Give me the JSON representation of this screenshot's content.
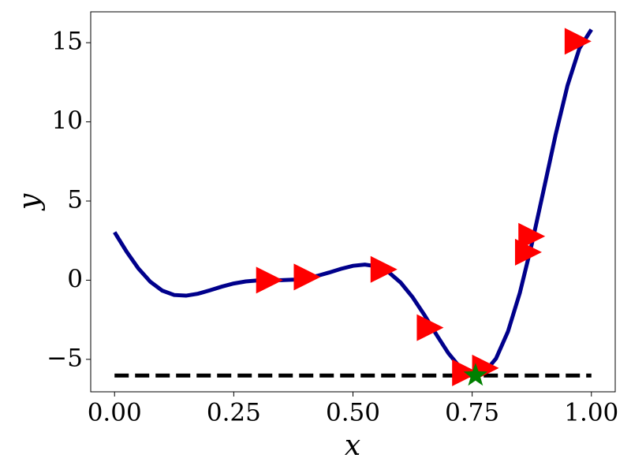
{
  "chart_data": {
    "type": "line",
    "x_label": "x",
    "y_label": "y",
    "x": [
      0,
      0.025,
      0.05,
      0.075,
      0.1,
      0.125,
      0.15,
      0.175,
      0.2,
      0.225,
      0.25,
      0.275,
      0.3,
      0.325,
      0.35,
      0.375,
      0.4,
      0.425,
      0.45,
      0.475,
      0.5,
      0.525,
      0.55,
      0.575,
      0.6,
      0.625,
      0.65,
      0.675,
      0.7,
      0.725,
      0.75,
      0.757,
      0.775,
      0.8,
      0.825,
      0.85,
      0.875,
      0.9,
      0.925,
      0.95,
      0.975,
      1.0
    ],
    "values": [
      3.027,
      1.813,
      0.738,
      -0.1,
      -0.657,
      -0.935,
      -0.978,
      -0.854,
      -0.64,
      -0.407,
      -0.21,
      -0.079,
      -0.016,
      -0.0002,
      0.002,
      0.03,
      0.115,
      0.27,
      0.483,
      0.717,
      0.909,
      0.986,
      0.871,
      0.503,
      -0.15,
      -1.074,
      -2.209,
      -3.439,
      -4.606,
      -5.522,
      -5.993,
      -6.02,
      -5.845,
      -4.949,
      -3.25,
      -0.799,
      2.272,
      5.712,
      9.187,
      12.303,
      14.648,
      15.83
    ],
    "color": "#00008b",
    "samples_x": [
      0.325,
      0.404,
      0.565,
      0.662,
      0.736,
      0.778,
      0.868,
      0.875,
      0.972
    ],
    "samples_y": [
      0.0,
      0.2,
      0.68,
      -3.0,
      -5.85,
      -5.55,
      1.77,
      2.77,
      15.09
    ],
    "samples_color": "#ff0000",
    "best_x": 0.757,
    "best_y": -6.02,
    "best_color": "#008000",
    "hline_y": -6.02,
    "hline_xlim": [
      0,
      1
    ],
    "hline_color": "#000000",
    "xlim": [
      -0.05,
      1.05
    ],
    "ylim": [
      -7.05,
      16.95
    ],
    "xticks": [
      {
        "value": 0,
        "label": "0.00"
      },
      {
        "value": 0.25,
        "label": "0.25"
      },
      {
        "value": 0.5,
        "label": "0.50"
      },
      {
        "value": 0.75,
        "label": "0.75"
      },
      {
        "value": 1,
        "label": "1.00"
      }
    ],
    "yticks": [
      {
        "value": -5,
        "label": "−5"
      },
      0,
      5,
      10,
      15
    ]
  }
}
